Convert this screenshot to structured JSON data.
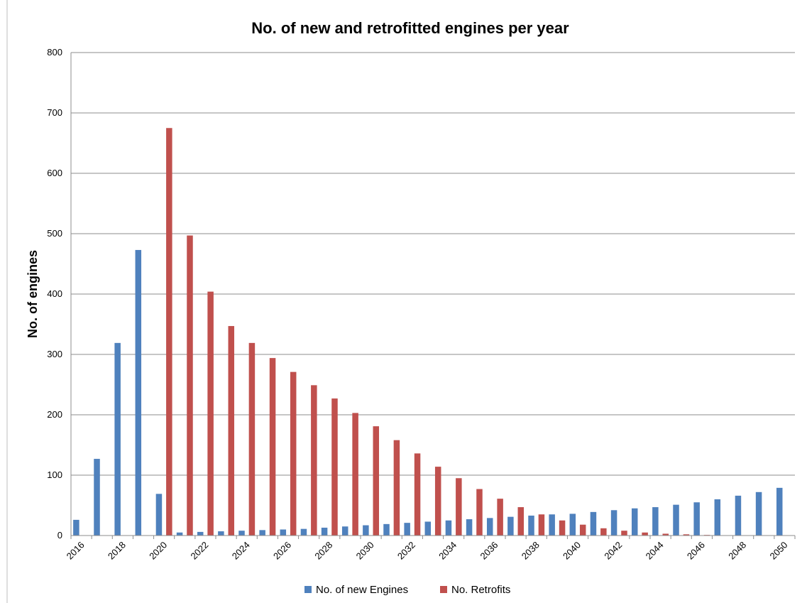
{
  "chart_data": {
    "type": "bar",
    "title": "No. of new and retrofitted engines per year",
    "xlabel": "",
    "ylabel": "No. of engines",
    "ylim": [
      0,
      800
    ],
    "yticks": [
      0,
      100,
      200,
      300,
      400,
      500,
      600,
      700,
      800
    ],
    "grid": true,
    "legend_position": "bottom",
    "categories": [
      2016,
      2017,
      2018,
      2019,
      2020,
      2021,
      2022,
      2023,
      2024,
      2025,
      2026,
      2027,
      2028,
      2029,
      2030,
      2031,
      2032,
      2033,
      2034,
      2035,
      2036,
      2037,
      2038,
      2039,
      2040,
      2041,
      2042,
      2043,
      2044,
      2045,
      2046,
      2047,
      2048,
      2049,
      2050
    ],
    "xtick_labels": [
      "2016",
      "2018",
      "2020",
      "2022",
      "2024",
      "2026",
      "2028",
      "2030",
      "2032",
      "2034",
      "2036",
      "2038",
      "2040",
      "2042",
      "2044",
      "2046",
      "2048",
      "2050"
    ],
    "series": [
      {
        "name": "No. of new Engines",
        "color": "#4F81BD",
        "values": [
          26,
          127,
          319,
          473,
          69,
          5,
          6,
          7,
          8,
          9,
          10,
          11,
          13,
          15,
          17,
          19,
          21,
          23,
          25,
          27,
          29,
          31,
          33,
          35,
          36,
          39,
          42,
          45,
          47,
          51,
          55,
          60,
          66,
          72,
          79
        ]
      },
      {
        "name": "No. Retrofits",
        "color": "#C0504D",
        "values": [
          0,
          0,
          0,
          0,
          675,
          497,
          404,
          347,
          319,
          294,
          271,
          249,
          227,
          203,
          181,
          158,
          136,
          114,
          95,
          77,
          61,
          47,
          35,
          25,
          18,
          12,
          8,
          5,
          3,
          2,
          1,
          0,
          0,
          0,
          0
        ]
      }
    ]
  }
}
